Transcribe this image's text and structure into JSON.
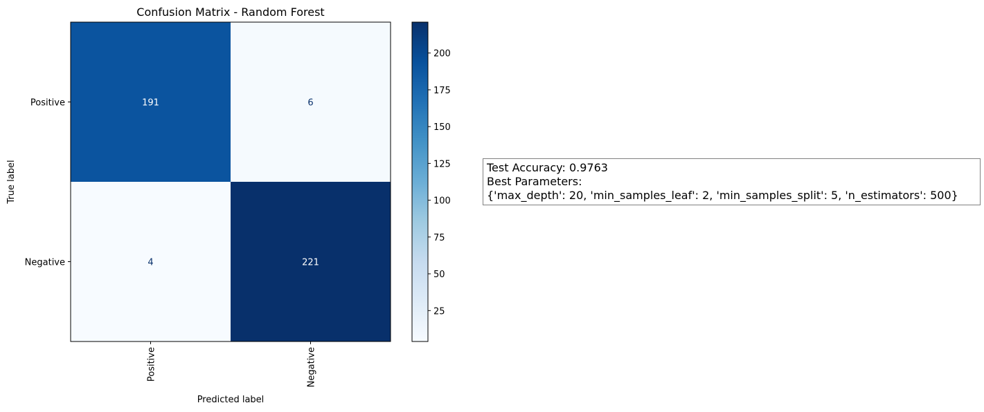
{
  "chart_data": {
    "type": "heatmap",
    "title": "Confusion Matrix - Random Forest",
    "xlabel": "Predicted label",
    "ylabel": "True label",
    "row_labels": [
      "Positive",
      "Negative"
    ],
    "col_labels": [
      "Positive",
      "Negative"
    ],
    "values": [
      [
        191,
        6
      ],
      [
        4,
        221
      ]
    ],
    "colormap": "Blues",
    "vmin": 4,
    "vmax": 221,
    "colorbar_ticks": [
      25,
      50,
      75,
      100,
      125,
      150,
      175,
      200
    ],
    "grid": false,
    "xtick_rotation": "vertical"
  },
  "info_box": {
    "line1": "Test Accuracy: 0.9763",
    "line2": "Best Parameters:",
    "line3": "{'max_depth': 20, 'min_samples_leaf': 2, 'min_samples_split': 5, 'n_estimators': 500}"
  }
}
